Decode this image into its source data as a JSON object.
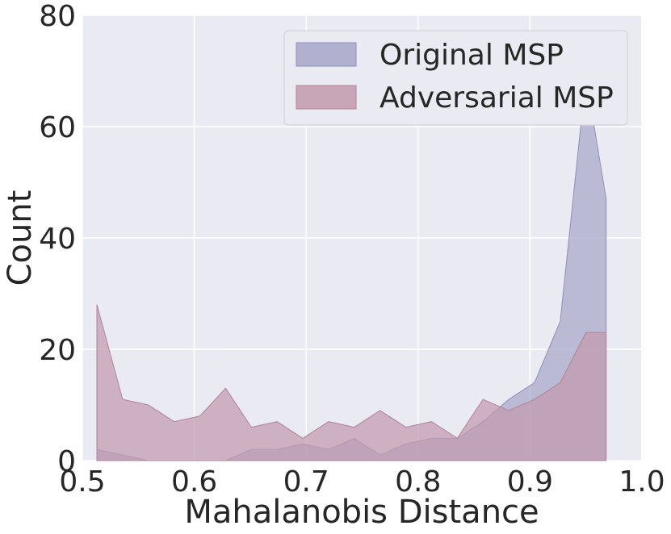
{
  "chart_data": {
    "type": "area",
    "xlabel": "Mahalanobis Distance",
    "ylabel": "Count",
    "xlim": [
      0.5,
      1.0
    ],
    "ylim": [
      0,
      80
    ],
    "xticks": [
      "0.5",
      "0.6",
      "0.7",
      "0.8",
      "0.9",
      "1.0"
    ],
    "yticks": [
      "0",
      "20",
      "40",
      "60",
      "80"
    ],
    "grid": true,
    "legend_position": "top-right",
    "x": [
      0.513,
      0.536,
      0.559,
      0.582,
      0.605,
      0.628,
      0.651,
      0.674,
      0.697,
      0.72,
      0.743,
      0.766,
      0.789,
      0.812,
      0.835,
      0.858,
      0.881,
      0.904,
      0.927,
      0.95,
      0.968
    ],
    "series": [
      {
        "name": "Original MSP",
        "color": "#a7a7c9",
        "values": [
          2,
          1,
          0,
          0,
          0,
          0,
          2,
          2,
          3,
          2,
          4,
          1,
          3,
          4,
          4,
          7,
          11,
          14,
          25,
          69,
          47
        ]
      },
      {
        "name": "Adversarial MSP",
        "color": "#c29aae",
        "values": [
          28,
          11,
          10,
          7,
          8,
          13,
          6,
          7,
          4,
          7,
          6,
          9,
          6,
          7,
          4,
          11,
          9,
          11,
          14,
          23,
          23
        ]
      }
    ]
  }
}
